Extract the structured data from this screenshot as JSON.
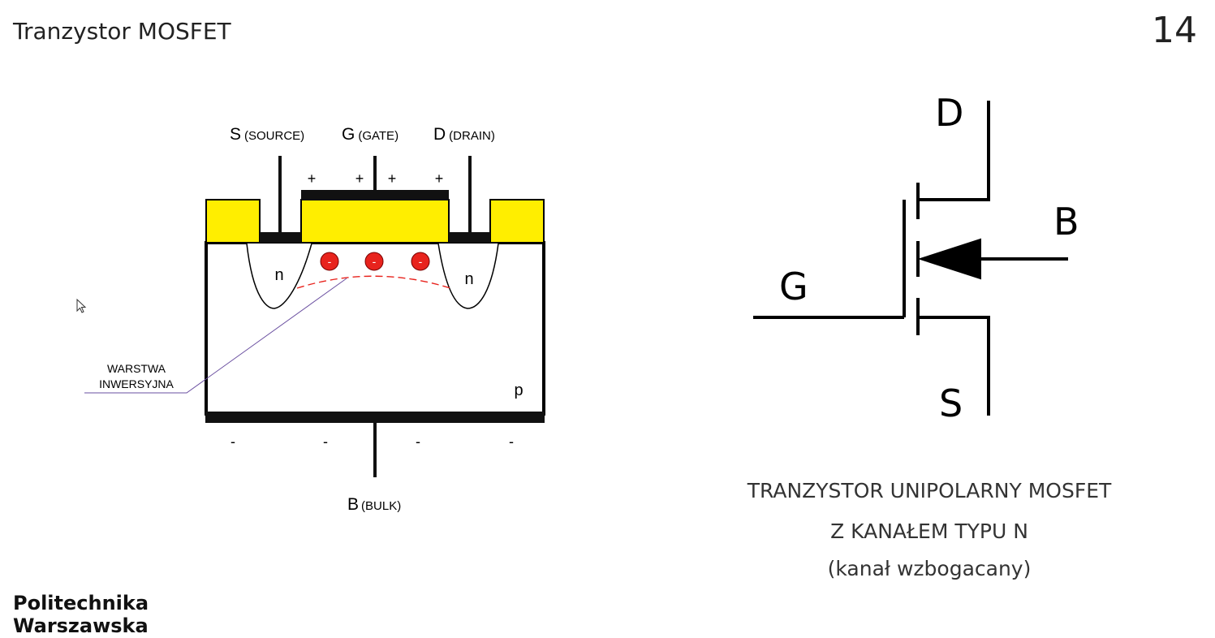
{
  "slide": {
    "title": "Tranzystor MOSFET",
    "number": "14"
  },
  "cross_section": {
    "source_letter": "S",
    "source_word": "(SOURCE)",
    "gate_letter": "G",
    "gate_word": "(GATE)",
    "drain_letter": "D",
    "drain_word": "(DRAIN)",
    "bulk_letter": "B",
    "bulk_word": "(BULK)",
    "plus_signs": [
      "+",
      "+",
      "+",
      "+"
    ],
    "minus_signs": [
      "-",
      "-",
      "-",
      "-"
    ],
    "electrons": [
      "-",
      "-",
      "-"
    ],
    "n_left": "n",
    "n_right": "n",
    "substrate": "p",
    "inversion_label_line1": "WARSTWA",
    "inversion_label_line2": "INWERSYJNA"
  },
  "symbol": {
    "drain": "D",
    "gate": "G",
    "bulk": "B",
    "source": "S"
  },
  "caption": {
    "line1": "TRANZYSTOR UNIPOLARNY MOSFET",
    "line2": "Z KANAŁEM TYPU N",
    "line3": "(kanał wzbogacany)"
  },
  "logo": {
    "line1": "Politechnika",
    "line2": "Warszawska"
  },
  "colors": {
    "oxide": "#ffee00",
    "electron": "#e8231d",
    "inversion_line": "#e8231d",
    "leader_line": "#6a4fa0"
  }
}
